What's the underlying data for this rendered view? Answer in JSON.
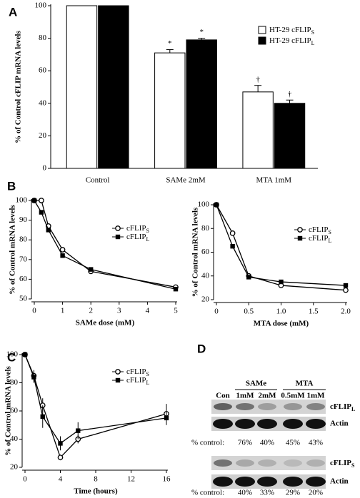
{
  "panel_labels": [
    "A",
    "B",
    "C",
    "D"
  ],
  "chart_data": [
    {
      "type": "bar",
      "ylabel": "% of Control cFLIP mRNA levels",
      "categories": [
        "Control",
        "SAMe 2mM",
        "MTA 1mM"
      ],
      "series": [
        {
          "name": "HT-29 cFLIP",
          "subscript": "S",
          "color": "#ffffff",
          "values": [
            100,
            71,
            47
          ],
          "errors": [
            0,
            2,
            4
          ],
          "markers": [
            null,
            "*",
            "†"
          ]
        },
        {
          "name": "HT-29 cFLIP",
          "subscript": "L",
          "color": "#000000",
          "values": [
            100,
            79,
            40
          ],
          "errors": [
            0,
            1,
            2
          ],
          "markers": [
            null,
            "*",
            "†"
          ]
        }
      ],
      "ylim": [
        0,
        100
      ],
      "yticks": [
        0,
        20,
        40,
        60,
        80,
        100
      ]
    },
    {
      "type": "line",
      "xlabel": "SAMe dose (mM)",
      "ylabel": "% of Control mRNA levels",
      "x": [
        0,
        0.25,
        0.5,
        1,
        2,
        5
      ],
      "series": [
        {
          "name": "cFLIP",
          "subscript": "S",
          "marker": "circle",
          "color": "#000000",
          "values": [
            100,
            100,
            87,
            75,
            64,
            56
          ]
        },
        {
          "name": "cFLIP",
          "subscript": "L",
          "marker": "square",
          "color": "#000000",
          "values": [
            100,
            94,
            85,
            72,
            65,
            55
          ]
        }
      ],
      "xlim": [
        0,
        5
      ],
      "xticks": [
        0,
        1,
        2,
        3,
        4,
        5
      ],
      "ylim": [
        50,
        100
      ],
      "yticks": [
        50,
        60,
        70,
        80,
        90,
        100
      ]
    },
    {
      "type": "line",
      "xlabel": "MTA dose (mM)",
      "ylabel": "% of Control mRNA levels",
      "x": [
        0,
        0.25,
        0.5,
        1,
        2
      ],
      "series": [
        {
          "name": "cFLIP",
          "subscript": "S",
          "marker": "circle",
          "color": "#000000",
          "values": [
            100,
            76,
            40,
            32,
            28
          ]
        },
        {
          "name": "cFLIP",
          "subscript": "L",
          "marker": "square",
          "color": "#000000",
          "values": [
            100,
            65,
            39,
            35,
            32
          ]
        }
      ],
      "xlim": [
        0,
        2
      ],
      "xticks": [
        0,
        0.5,
        {
          "value": 1,
          "label": "1.0"
        },
        1.5,
        {
          "value": 2,
          "label": "2.0"
        }
      ],
      "ylim": [
        20,
        100
      ],
      "yticks": [
        20,
        40,
        60,
        80,
        100
      ]
    },
    {
      "type": "line",
      "xlabel": "Time (hours)",
      "ylabel": "% of Control mRNA levels",
      "x": [
        0,
        1,
        2,
        4,
        6,
        16
      ],
      "series": [
        {
          "name": "cFLIP",
          "subscript": "S",
          "marker": "circle",
          "color": "#000000",
          "values": [
            100,
            85,
            64,
            27,
            40,
            58
          ],
          "errors": [
            0,
            4,
            5,
            2,
            3,
            7
          ]
        },
        {
          "name": "cFLIP",
          "subscript": "L",
          "marker": "square",
          "color": "#000000",
          "values": [
            100,
            84,
            56,
            37,
            46,
            55
          ],
          "errors": [
            0,
            4,
            8,
            5,
            6,
            5
          ]
        }
      ],
      "xlim": [
        0,
        16
      ],
      "xticks": [
        0,
        4,
        8,
        12,
        16
      ],
      "ylim": [
        20,
        100
      ],
      "yticks": [
        20,
        40,
        60,
        80,
        100
      ]
    }
  ],
  "blot": {
    "groups": [
      "SAMe",
      "MTA"
    ],
    "lanes": [
      "Con",
      "1mM",
      "2mM",
      "0.5mM",
      "1mM"
    ],
    "panels": [
      {
        "label": "cFLIP",
        "subscript": "L",
        "loading": "Actin",
        "prefix": "% control:",
        "percents": [
          "76%",
          "40%",
          "45%",
          "43%"
        ]
      },
      {
        "label": "cFLIP",
        "subscript": "S",
        "loading": "Actin",
        "prefix": "% control:",
        "percents": [
          "40%",
          "33%",
          "29%",
          "20%"
        ]
      }
    ]
  }
}
